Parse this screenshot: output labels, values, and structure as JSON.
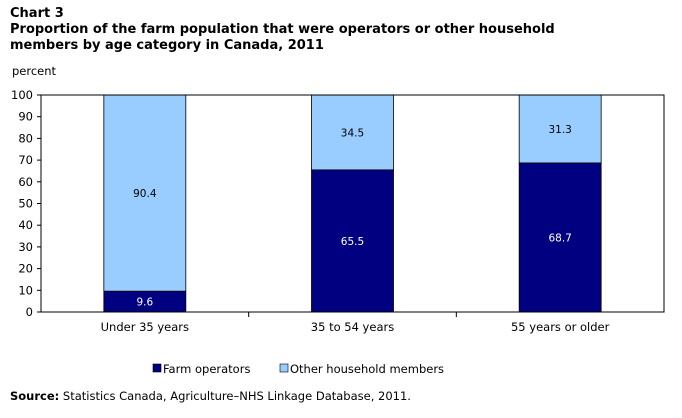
{
  "chart_number": "Chart 3",
  "title": "Proportion of the farm population that were operators or other household members by age category in Canada, 2011",
  "source_label": "Source:",
  "source_text": " Statistics Canada, Agriculture–NHS Linkage Database, 2011.",
  "chart_data": {
    "type": "bar",
    "stacked": true,
    "categories": [
      "Under 35 years",
      "35 to 54 years",
      "55 years or older"
    ],
    "series": [
      {
        "name": "Farm operators",
        "values": [
          9.6,
          65.5,
          68.7
        ],
        "color": "#000080",
        "label_color": "#ffffff"
      },
      {
        "name": "Other household members",
        "values": [
          90.4,
          34.5,
          31.3
        ],
        "color": "#99ccff",
        "label_color": "#000000"
      }
    ],
    "data_labels": [
      [
        "9.6",
        "65.5",
        "68.7"
      ],
      [
        "90.4",
        "34.5",
        "31.3"
      ]
    ],
    "ylabel": "percent",
    "xlabel": "",
    "ylim": [
      0,
      100
    ],
    "yticks": [
      0,
      10,
      20,
      30,
      40,
      50,
      60,
      70,
      80,
      90,
      100
    ],
    "legend_position": "bottom",
    "grid": false
  }
}
